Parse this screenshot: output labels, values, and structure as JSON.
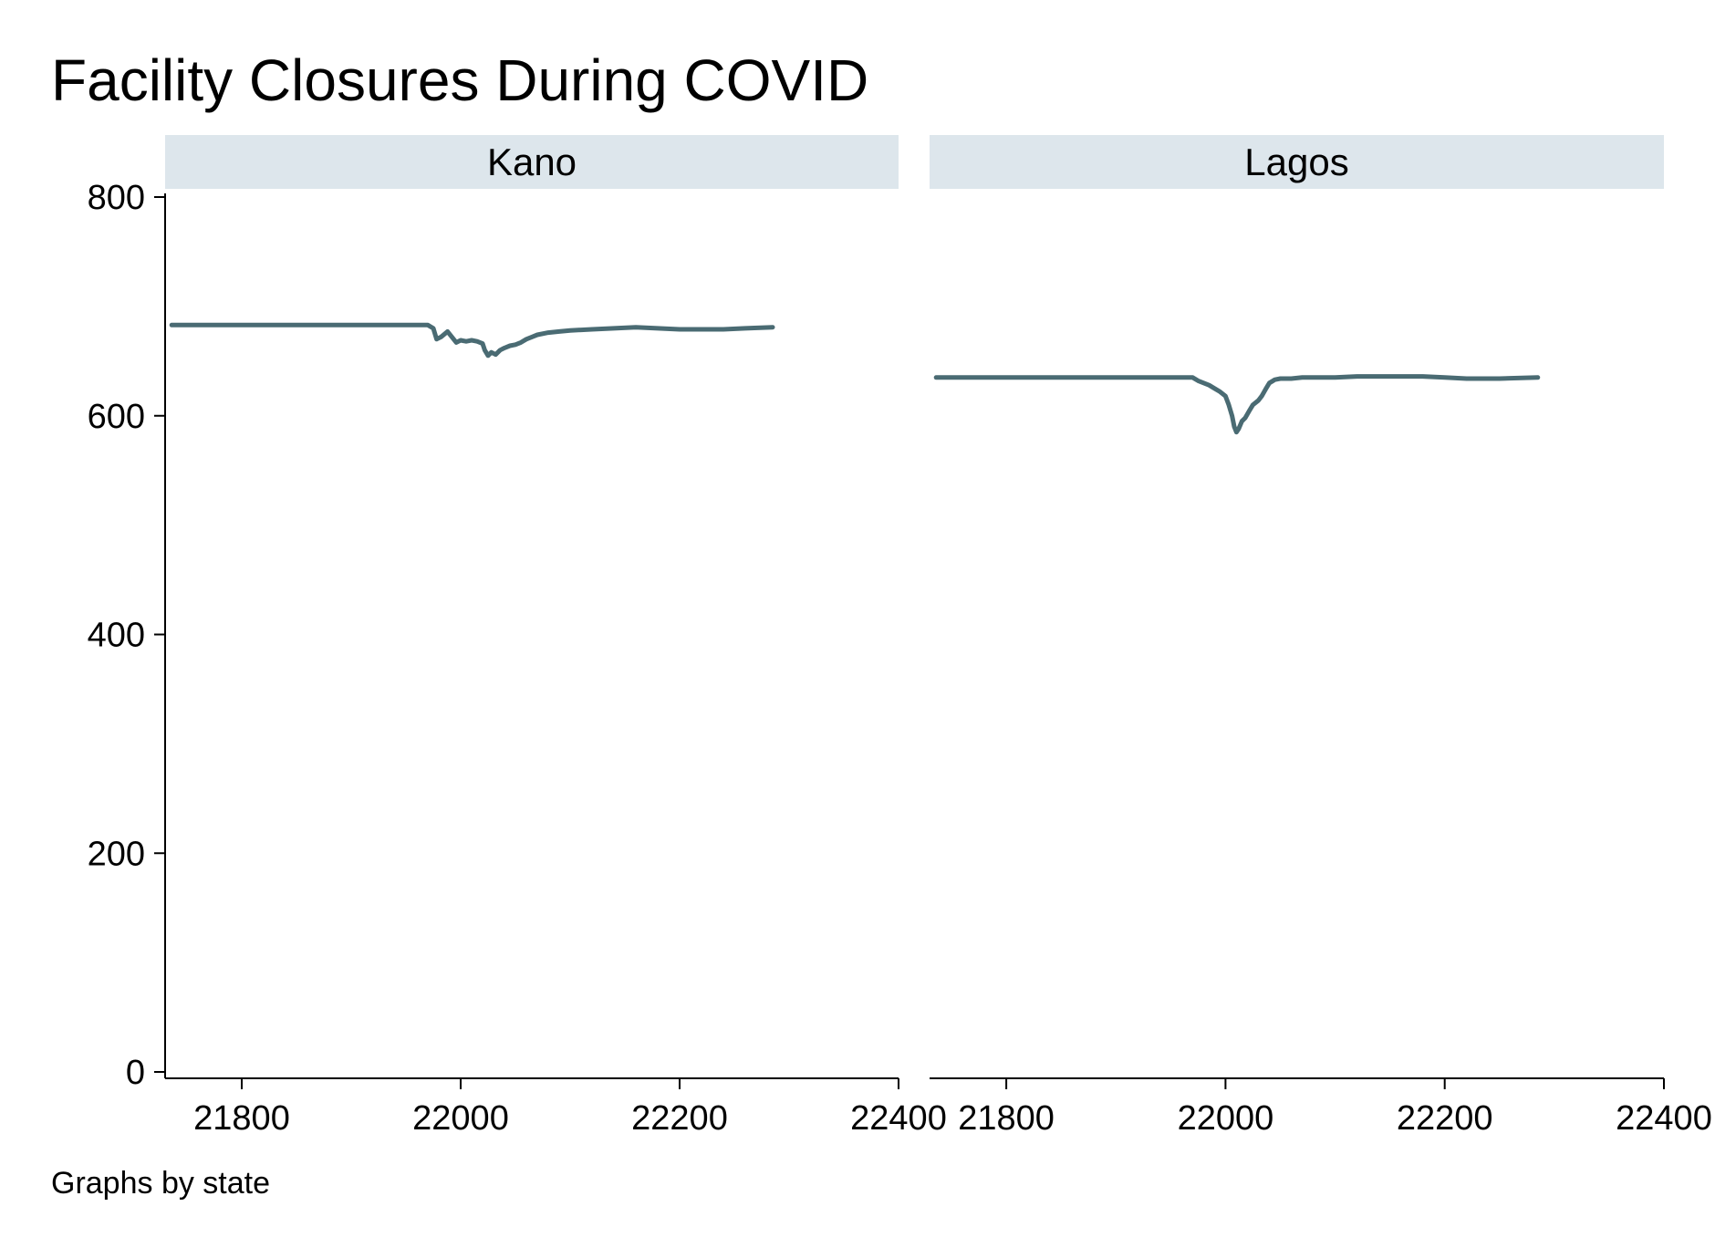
{
  "chart_data": {
    "type": "line",
    "title": "Facility Closures During COVID",
    "note": "Graphs by state",
    "xlim": [
      21730,
      22400
    ],
    "ylim": [
      0,
      800
    ],
    "x_ticks": [
      21800,
      22000,
      22200,
      22400
    ],
    "y_ticks": [
      0,
      200,
      400,
      600,
      800
    ],
    "xlabel": "",
    "ylabel": "",
    "grid": false,
    "colors": {
      "line": "#4a6b73",
      "strip": "#dde6ec",
      "axis": "#000000"
    },
    "panels": [
      {
        "label": "Kano",
        "series": [
          {
            "x": [
              21736,
              21800,
              21900,
              21970,
              21975,
              21978,
              21982,
              21988,
              21992,
              21996,
              22000,
              22005,
              22010,
              22015,
              22020,
              22022,
              22025,
              22028,
              22032,
              22036,
              22040,
              22045,
              22050,
              22055,
              22060,
              22065,
              22070,
              22080,
              22090,
              22100,
              22120,
              22140,
              22160,
              22180,
              22200,
              22220,
              22240,
              22260,
              22285
            ],
            "y": [
              683,
              683,
              683,
              683,
              680,
              670,
              672,
              677,
              672,
              667,
              669,
              668,
              669,
              668,
              666,
              660,
              655,
              658,
              656,
              660,
              662,
              664,
              665,
              667,
              670,
              672,
              674,
              676,
              677,
              678,
              679,
              680,
              681,
              680,
              679,
              679,
              679,
              680,
              681
            ]
          }
        ]
      },
      {
        "label": "Lagos",
        "series": [
          {
            "x": [
              21736,
              21800,
              21900,
              21970,
              21975,
              21980,
              21985,
              21990,
              21995,
              22000,
              22003,
              22006,
              22008,
              22010,
              22012,
              22015,
              22018,
              22022,
              22025,
              22030,
              22033,
              22037,
              22040,
              22045,
              22050,
              22060,
              22070,
              22080,
              22100,
              22120,
              22150,
              22180,
              22200,
              22220,
              22250,
              22285
            ],
            "y": [
              635,
              635,
              635,
              635,
              632,
              630,
              628,
              625,
              622,
              618,
              610,
              600,
              590,
              585,
              588,
              595,
              598,
              605,
              610,
              614,
              618,
              625,
              630,
              633,
              634,
              634,
              635,
              635,
              635,
              636,
              636,
              636,
              635,
              634,
              634,
              635
            ]
          }
        ]
      }
    ]
  }
}
